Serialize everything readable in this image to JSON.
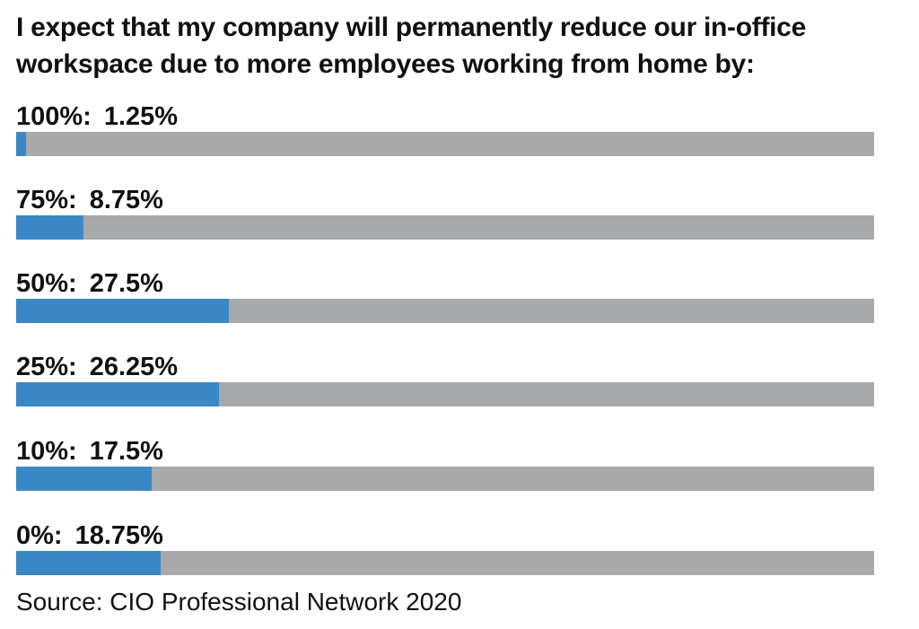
{
  "chart_data": {
    "type": "bar",
    "title": "I expect that my company will permanently reduce our in-office workspace due to more employees working from home by:",
    "categories": [
      "100%:",
      "75%:",
      "50%:",
      "25%:",
      "10%:",
      "0%:"
    ],
    "value_labels": [
      "1.25%",
      "8.75%",
      "27.5%",
      "26.25%",
      "17.5%",
      "18.75%"
    ],
    "values": [
      1.25,
      8.75,
      27.5,
      26.25,
      17.5,
      18.75
    ],
    "xlim": [
      0,
      100
    ],
    "orientation": "horizontal",
    "grid": false,
    "legend": "none",
    "bar_color": "#3a88c5",
    "track_color": "#a7a9ab",
    "source": "Source: CIO Professional Network 2020"
  }
}
